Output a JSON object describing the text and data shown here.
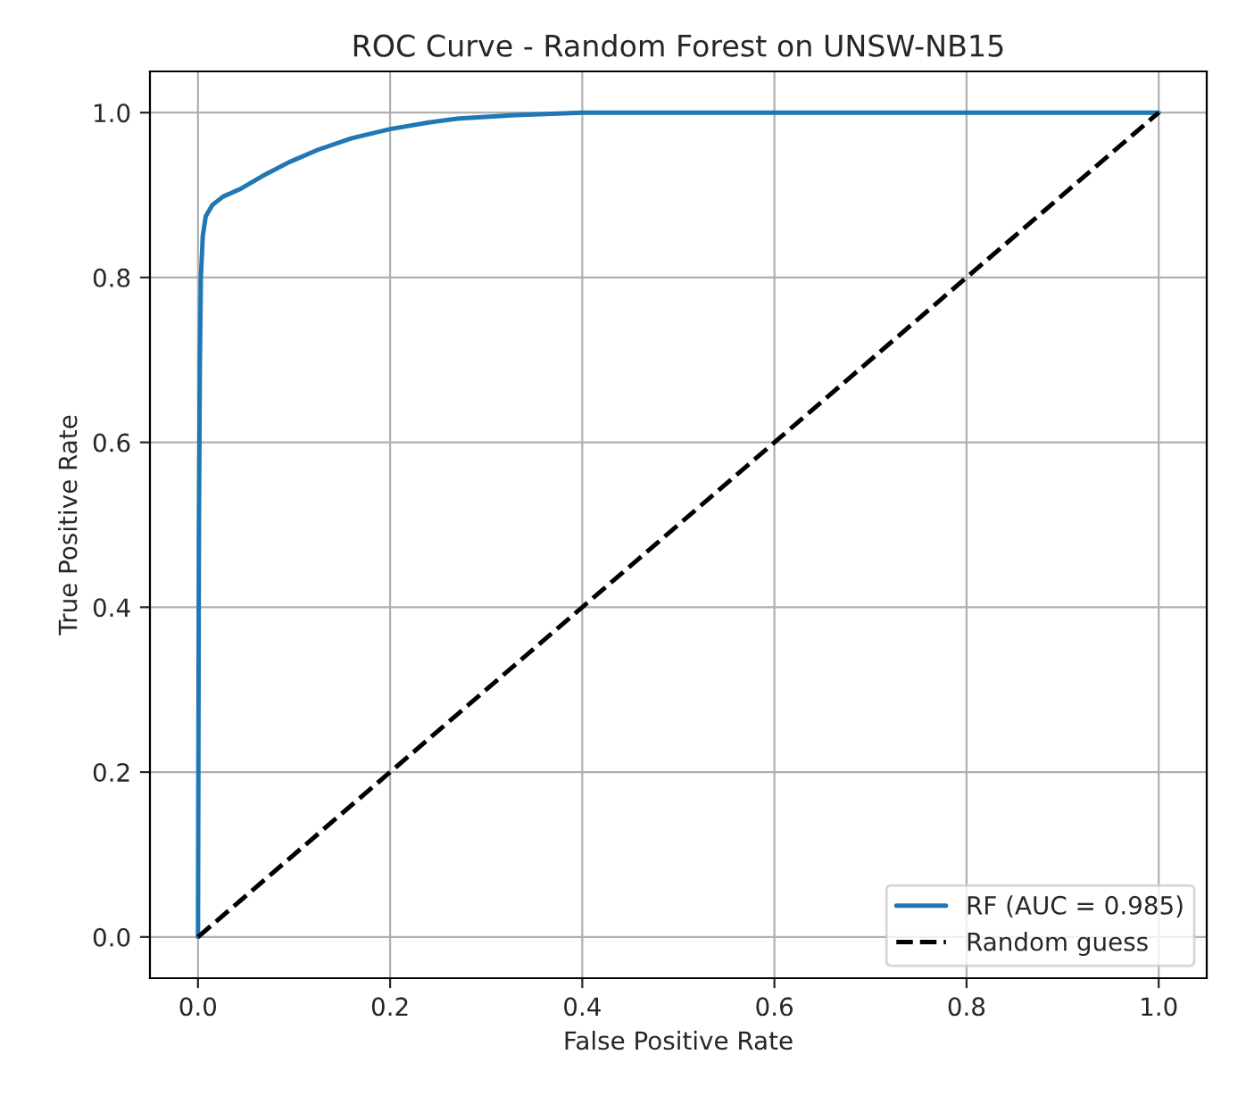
{
  "chart_data": {
    "type": "line",
    "title": "ROC Curve - Random Forest on UNSW-NB15",
    "xlabel": "False Positive Rate",
    "ylabel": "True Positive Rate",
    "series": [
      {
        "name": "RF (AUC = 0.985)",
        "color": "#1f77b4",
        "line_style": "solid",
        "x": [
          0,
          0.001,
          0.002,
          0.003,
          0.005,
          0.008,
          0.015,
          0.026,
          0.045,
          0.067,
          0.095,
          0.125,
          0.16,
          0.2,
          0.24,
          0.272,
          0.33,
          0.4,
          0.6,
          1.0
        ],
        "values": [
          0,
          0.5,
          0.7,
          0.8,
          0.85,
          0.874,
          0.888,
          0.898,
          0.908,
          0.923,
          0.94,
          0.955,
          0.969,
          0.98,
          0.988,
          0.993,
          0.997,
          1.0,
          1.0,
          1.0
        ]
      },
      {
        "name": "Random guess",
        "color": "#000000",
        "line_style": "dashed",
        "x": [
          0,
          1
        ],
        "values": [
          0,
          1
        ]
      }
    ],
    "xlim": [
      -0.05,
      1.05
    ],
    "ylim": [
      -0.05,
      1.05
    ],
    "xticks": [
      {
        "value": 0,
        "label": "0.0"
      },
      0.2,
      0.4,
      0.6,
      0.8,
      {
        "value": 1,
        "label": "1.0"
      }
    ],
    "yticks": [
      {
        "value": 0,
        "label": "0.0"
      },
      0.2,
      0.4,
      0.6,
      0.8,
      {
        "value": 1,
        "label": "1.0"
      }
    ],
    "grid": true,
    "legend": "bottom right"
  }
}
